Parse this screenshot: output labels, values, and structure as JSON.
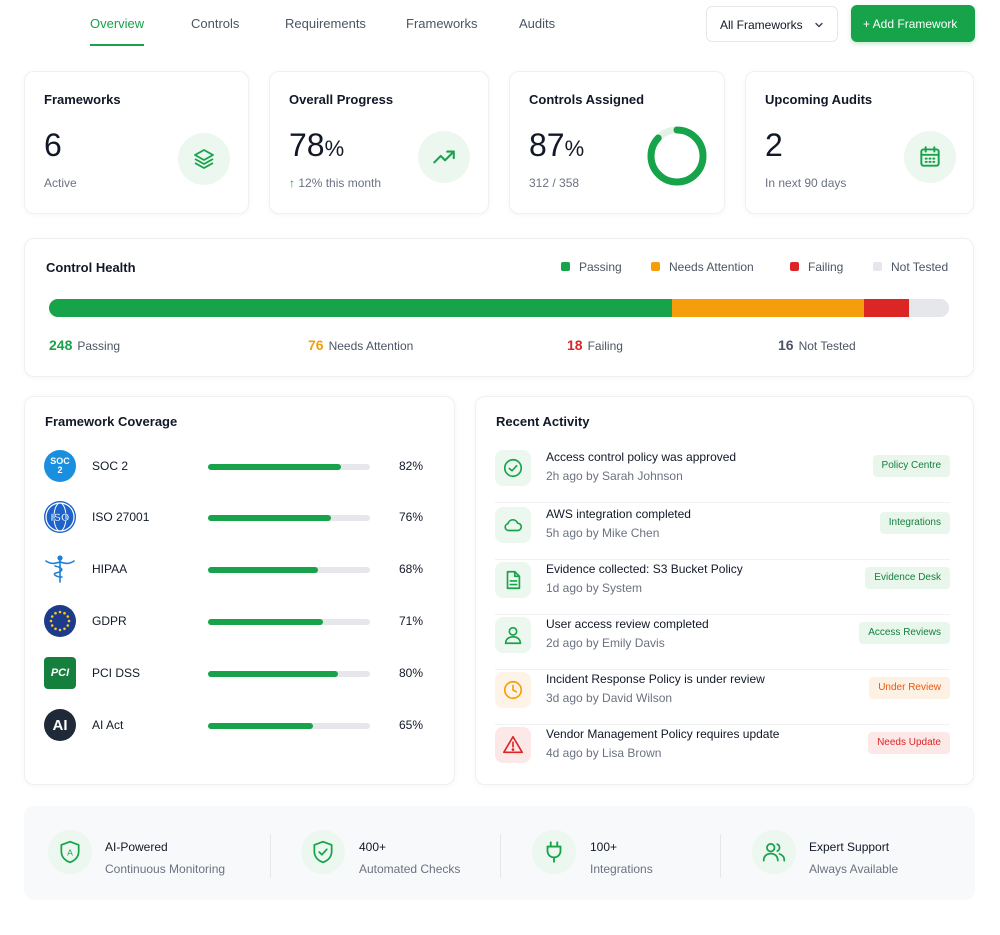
{
  "nav": {
    "tabs": [
      {
        "label": "Overview",
        "active": true
      },
      {
        "label": "Controls"
      },
      {
        "label": "Requirements"
      },
      {
        "label": "Frameworks"
      },
      {
        "label": "Audits"
      }
    ],
    "framework_filter": "All Frameworks",
    "add_button": "+ Add Framework"
  },
  "stats": [
    {
      "title": "Frameworks",
      "value": "6",
      "sub": "Active",
      "icon": "layers-icon"
    },
    {
      "title": "Overall Progress",
      "value": "78",
      "unit": "%",
      "sub": "12% this month",
      "icon": "trending-up-icon"
    },
    {
      "title": "Controls Assigned",
      "value": "87",
      "unit": "%",
      "sub": "312 / 358",
      "donut_fraction": 0.87
    },
    {
      "title": "Upcoming Audits",
      "value": "2",
      "sub": "In next 90 days",
      "icon": "calendar-icon"
    }
  ],
  "health": {
    "title": "Control Health",
    "legend": [
      "Passing",
      "Needs Attention",
      "Failing",
      "Not Tested"
    ],
    "segments": [
      {
        "label": "Passing",
        "count": 248,
        "color": "#16a34a"
      },
      {
        "label": "Needs Attention",
        "count": 76,
        "color": "#f59e0b"
      },
      {
        "label": "Failing",
        "count": 18,
        "color": "#dc2626"
      },
      {
        "label": "Not Tested",
        "count": 16,
        "color": "#e5e7eb"
      }
    ],
    "counts": [
      {
        "value": "248",
        "label": "Passing",
        "color": "#16a34a"
      },
      {
        "value": "76",
        "label": "Needs Attention",
        "color": "#f59e0b"
      },
      {
        "value": "18",
        "label": "Failing",
        "color": "#dc2626"
      },
      {
        "value": "16",
        "label": "Not Tested",
        "color": "#4b5563"
      }
    ]
  },
  "coverage": {
    "title": "Framework Coverage",
    "items": [
      {
        "name": "SOC 2",
        "percent": "82%",
        "fraction": 0.82,
        "logo": "SOC\n2"
      },
      {
        "name": "ISO 27001",
        "percent": "76%",
        "fraction": 0.76,
        "logo": "ISO"
      },
      {
        "name": "HIPAA",
        "percent": "68%",
        "fraction": 0.68
      },
      {
        "name": "GDPR",
        "percent": "71%",
        "fraction": 0.71
      },
      {
        "name": "PCI DSS",
        "percent": "80%",
        "fraction": 0.8,
        "logo": "PCI"
      },
      {
        "name": "AI Act",
        "percent": "65%",
        "fraction": 0.65,
        "logo": "AI"
      }
    ]
  },
  "activity": {
    "title": "Recent Activity",
    "items": [
      {
        "title": "Access control policy was approved",
        "sub": "2h ago by Sarah Johnson",
        "badge": "Policy Centre",
        "tone": "green",
        "icon": "check-circle-icon"
      },
      {
        "title": "AWS integration completed",
        "sub": "5h ago by Mike Chen",
        "badge": "Integrations",
        "tone": "green",
        "icon": "cloud-icon"
      },
      {
        "title": "Evidence collected: S3 Bucket Policy",
        "sub": "1d ago by System",
        "badge": "Evidence Desk",
        "tone": "green",
        "icon": "document-icon"
      },
      {
        "title": "User access review completed",
        "sub": "2d ago by Emily Davis",
        "badge": "Access Reviews",
        "tone": "green",
        "icon": "user-icon"
      },
      {
        "title": "Incident Response Policy is under review",
        "sub": "3d ago by David Wilson",
        "badge": "Under Review",
        "tone": "orange",
        "icon": "clock-icon"
      },
      {
        "title": "Vendor Management Policy requires update",
        "sub": "4d ago by Lisa Brown",
        "badge": "Needs Update",
        "tone": "red",
        "icon": "warning-icon"
      }
    ]
  },
  "features": [
    {
      "title": "AI-Powered",
      "sub": "Continuous Monitoring",
      "icon": "ai-shield-icon"
    },
    {
      "title": "400+",
      "sub": "Automated Checks",
      "icon": "shield-check-icon"
    },
    {
      "title": "100+",
      "sub": "Integrations",
      "icon": "plug-icon"
    },
    {
      "title": "Expert Support",
      "sub": "Always Available",
      "icon": "users-icon"
    }
  ],
  "colors": {
    "accent": "#16a34a",
    "warning": "#f59e0b",
    "danger": "#dc2626",
    "neutral": "#e5e7eb"
  }
}
